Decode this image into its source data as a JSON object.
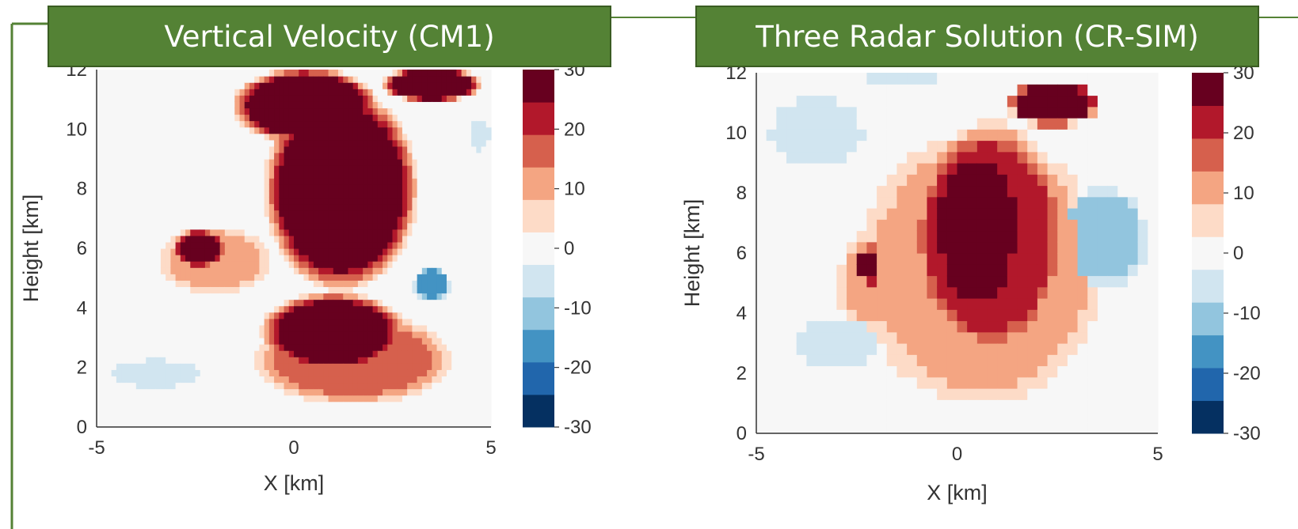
{
  "chart_data": [
    {
      "type": "heatmap",
      "title": "Vertical Velocity (CM1)",
      "xlabel": "X [km]",
      "ylabel": "Height [km]",
      "xlim": [
        -5,
        5
      ],
      "ylim": [
        0,
        12
      ],
      "x_ticks": [
        "-5",
        "0",
        "5"
      ],
      "y_ticks": [
        "0",
        "2",
        "4",
        "6",
        "8",
        "10",
        "12"
      ],
      "colorbar_ticks": [
        "-30",
        "-20",
        "-10",
        "0",
        "10",
        "20",
        "30"
      ],
      "colorbar_range": [
        -30,
        30
      ],
      "grid": false,
      "regions": [
        {
          "name": "updraft core",
          "value": 30,
          "shape": "blob",
          "x": 1.2,
          "y": 8.0,
          "rx": 2.0,
          "ry": 3.5
        },
        {
          "name": "updraft top",
          "value": 30,
          "shape": "blob",
          "x": 0.3,
          "y": 10.8,
          "rx": 1.9,
          "ry": 1.3
        },
        {
          "name": "upper right",
          "value": 30,
          "shape": "blob",
          "x": 3.5,
          "y": 11.5,
          "rx": 1.3,
          "ry": 0.6
        },
        {
          "name": "lower body",
          "value": 25,
          "shape": "blob",
          "x": 1.0,
          "y": 3.2,
          "rx": 1.9,
          "ry": 1.4
        },
        {
          "name": "outer lower",
          "value": 15,
          "shape": "blob",
          "x": 1.5,
          "y": 2.3,
          "rx": 2.6,
          "ry": 1.6
        },
        {
          "name": "left cell",
          "value": 25,
          "shape": "blob",
          "x": -2.4,
          "y": 6.0,
          "rx": 0.7,
          "ry": 0.7
        },
        {
          "name": "left cell halo",
          "value": 10,
          "shape": "blob",
          "x": -2.0,
          "y": 5.6,
          "rx": 1.5,
          "ry": 1.2
        },
        {
          "name": "downdraft right",
          "value": -15,
          "shape": "blob",
          "x": 3.5,
          "y": 4.8,
          "rx": 0.5,
          "ry": 0.6
        },
        {
          "name": "downdraft lower left",
          "value": -8,
          "shape": "blob",
          "x": -3.5,
          "y": 1.8,
          "rx": 1.2,
          "ry": 0.5
        },
        {
          "name": "downdraft upper right",
          "value": -5,
          "shape": "blob",
          "x": 4.7,
          "y": 9.8,
          "rx": 0.3,
          "ry": 0.6
        }
      ],
      "background_value": 0
    },
    {
      "type": "heatmap",
      "title": "Three Radar Solution (CR-SIM)",
      "xlabel": "X [km]",
      "ylabel": "Height [km]",
      "xlim": [
        -5,
        5
      ],
      "ylim": [
        0,
        12
      ],
      "x_ticks": [
        "-5",
        "0",
        "5"
      ],
      "y_ticks": [
        "0",
        "2",
        "4",
        "6",
        "8",
        "10",
        "12"
      ],
      "colorbar_ticks": [
        "-30",
        "-20",
        "-10",
        "0",
        "10",
        "20",
        "30"
      ],
      "colorbar_range": [
        -30,
        30
      ],
      "grid": false,
      "regions": [
        {
          "name": "updraft core",
          "value": 30,
          "shape": "blob",
          "x": 0.5,
          "y": 6.8,
          "rx": 1.2,
          "ry": 3.0
        },
        {
          "name": "upper right core",
          "value": 30,
          "shape": "blob",
          "x": 2.4,
          "y": 11.0,
          "rx": 1.2,
          "ry": 0.8
        },
        {
          "name": "updraft body",
          "value": 22,
          "shape": "blob",
          "x": 0.8,
          "y": 6.5,
          "rx": 2.0,
          "ry": 4.0
        },
        {
          "name": "outer body",
          "value": 12,
          "shape": "blob",
          "x": 0.6,
          "y": 5.5,
          "rx": 3.2,
          "ry": 4.8
        },
        {
          "name": "left cell",
          "value": 28,
          "shape": "blob",
          "x": -2.2,
          "y": 5.6,
          "rx": 0.3,
          "ry": 0.7
        },
        {
          "name": "left halo",
          "value": 10,
          "shape": "blob",
          "x": -2.2,
          "y": 5.0,
          "rx": 0.8,
          "ry": 1.8
        },
        {
          "name": "downdraft right",
          "value": -10,
          "shape": "blob",
          "x": 3.6,
          "y": 6.5,
          "rx": 1.2,
          "ry": 1.8
        },
        {
          "name": "downdraft lower left",
          "value": -8,
          "shape": "blob",
          "x": -3.0,
          "y": 3.0,
          "rx": 1.2,
          "ry": 1.0
        },
        {
          "name": "downdraft top",
          "value": -8,
          "shape": "blob",
          "x": -1.3,
          "y": 11.8,
          "rx": 0.9,
          "ry": 0.3
        },
        {
          "name": "weak upper left",
          "value": -3,
          "shape": "blob",
          "x": -3.5,
          "y": 10.0,
          "rx": 1.5,
          "ry": 1.5
        }
      ],
      "background_value": 0
    }
  ],
  "colors": {
    "title_bg": "#548235",
    "frame": "#548235",
    "colormap": [
      "#053061",
      "#2166ac",
      "#4393c3",
      "#92c5de",
      "#d1e5f0",
      "#f7f7f7",
      "#fddbc7",
      "#f4a582",
      "#d6604d",
      "#b2182b",
      "#67001f"
    ]
  }
}
